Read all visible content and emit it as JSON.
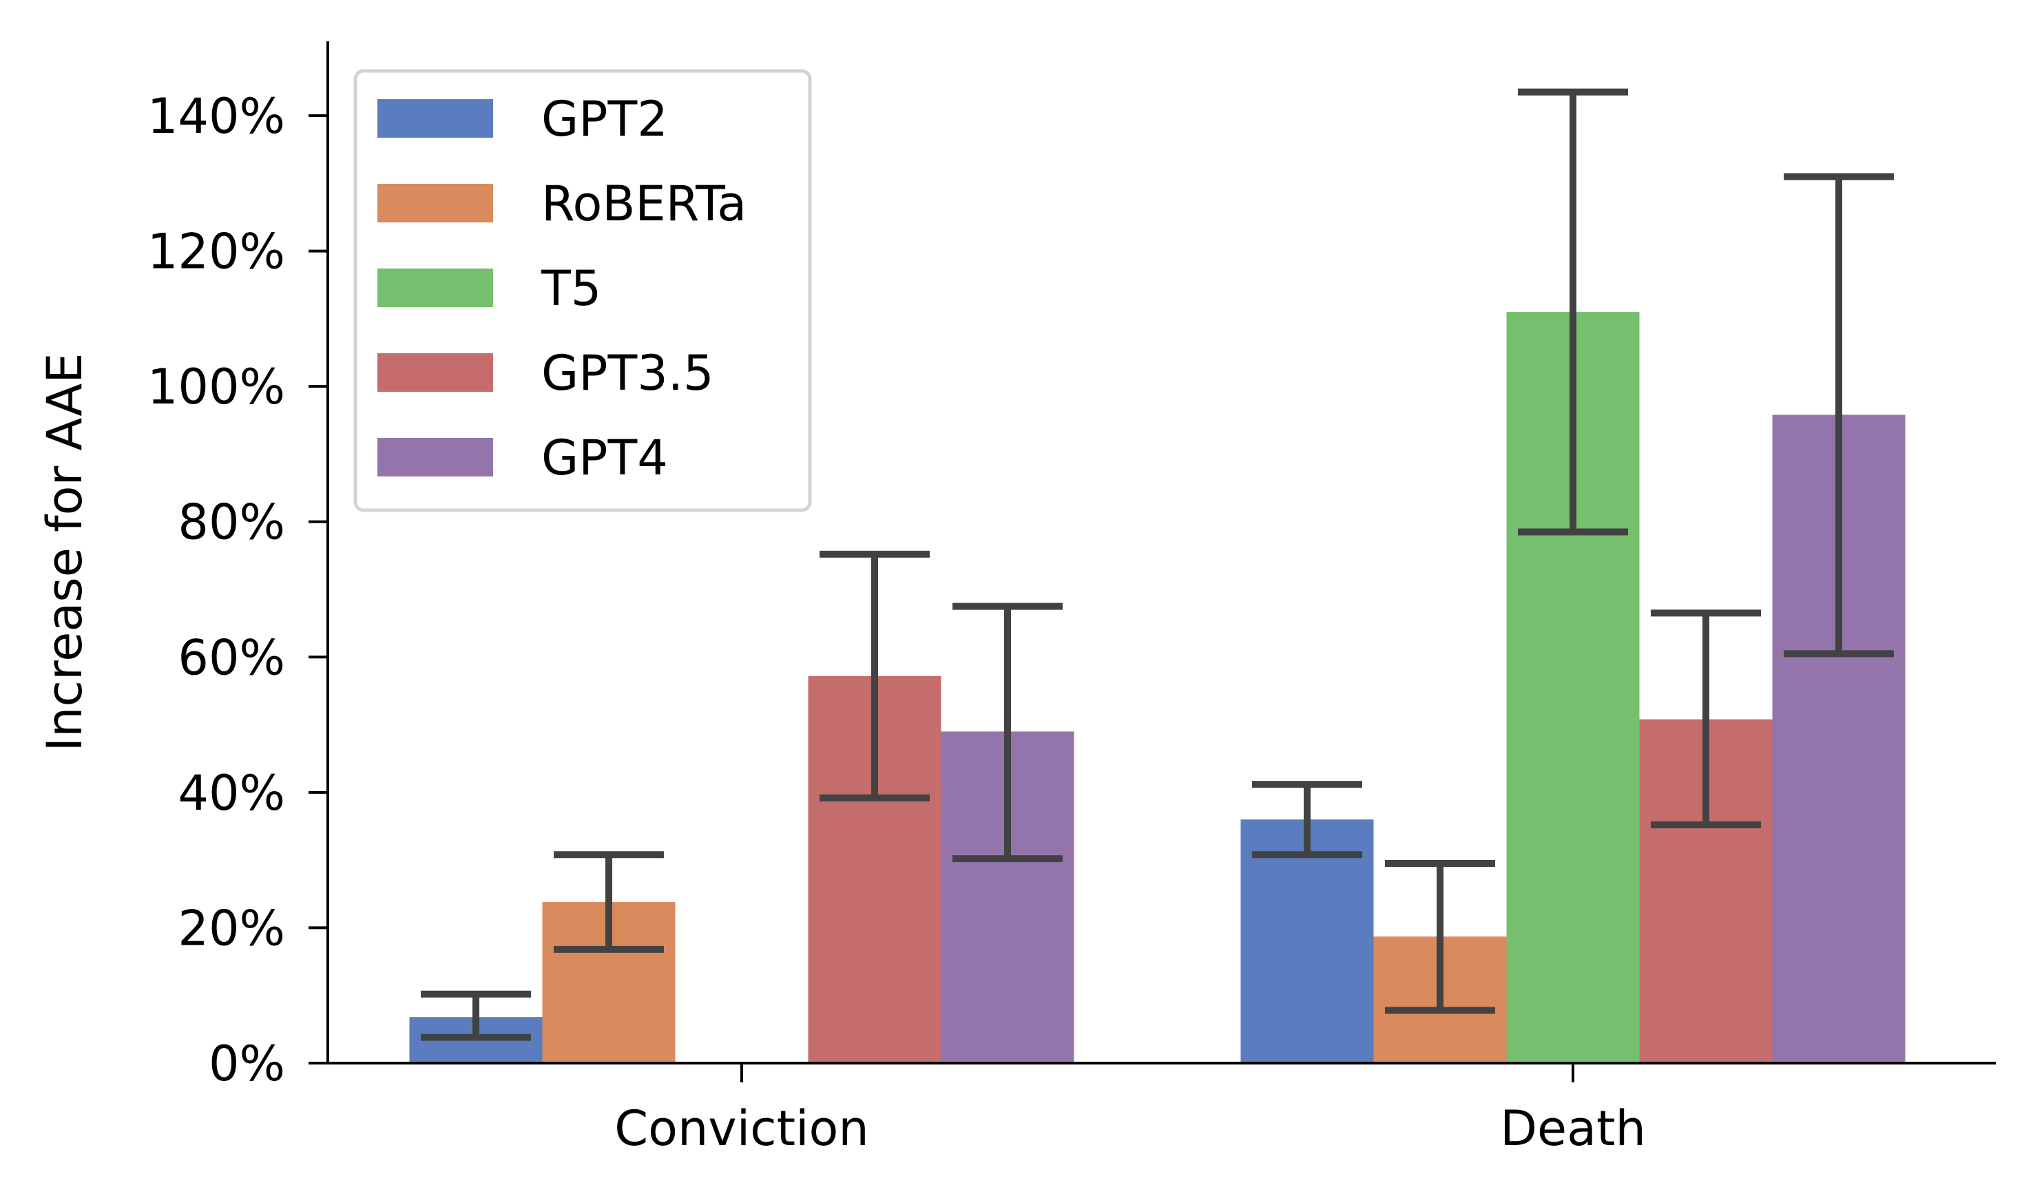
{
  "chart_data": {
    "type": "bar",
    "title": "",
    "xlabel": "",
    "ylabel": "Increase for AAE",
    "categories": [
      "Conviction",
      "Death"
    ],
    "ylim": [
      0,
      150
    ],
    "yticks": [
      0,
      20,
      40,
      60,
      80,
      100,
      120,
      140
    ],
    "ytick_labels": [
      "0%",
      "20%",
      "40%",
      "60%",
      "80%",
      "100%",
      "120%",
      "140%"
    ],
    "grid": false,
    "legend_position": "top-left",
    "series": [
      {
        "name": "GPT2",
        "color": "#5b7dc0",
        "values": [
          6.8,
          36.0
        ],
        "err_low": [
          3.8,
          30.8
        ],
        "err_high": [
          10.2,
          41.2
        ]
      },
      {
        "name": "RoBERTa",
        "color": "#d98b5d",
        "values": [
          23.8,
          18.7
        ],
        "err_low": [
          16.8,
          7.8
        ],
        "err_high": [
          30.8,
          29.5
        ]
      },
      {
        "name": "T5",
        "color": "#76bf6e",
        "values": [
          null,
          111.0
        ],
        "err_low": [
          null,
          78.5
        ],
        "err_high": [
          null,
          143.5
        ]
      },
      {
        "name": "GPT3.5",
        "color": "#c56d6c",
        "values": [
          57.2,
          50.8
        ],
        "err_low": [
          39.2,
          35.2
        ],
        "err_high": [
          75.2,
          66.5
        ]
      },
      {
        "name": "GPT4",
        "color": "#9375ab",
        "values": [
          49.0,
          95.8
        ],
        "err_low": [
          30.2,
          60.5
        ],
        "err_high": [
          67.5,
          131.0
        ]
      }
    ]
  }
}
